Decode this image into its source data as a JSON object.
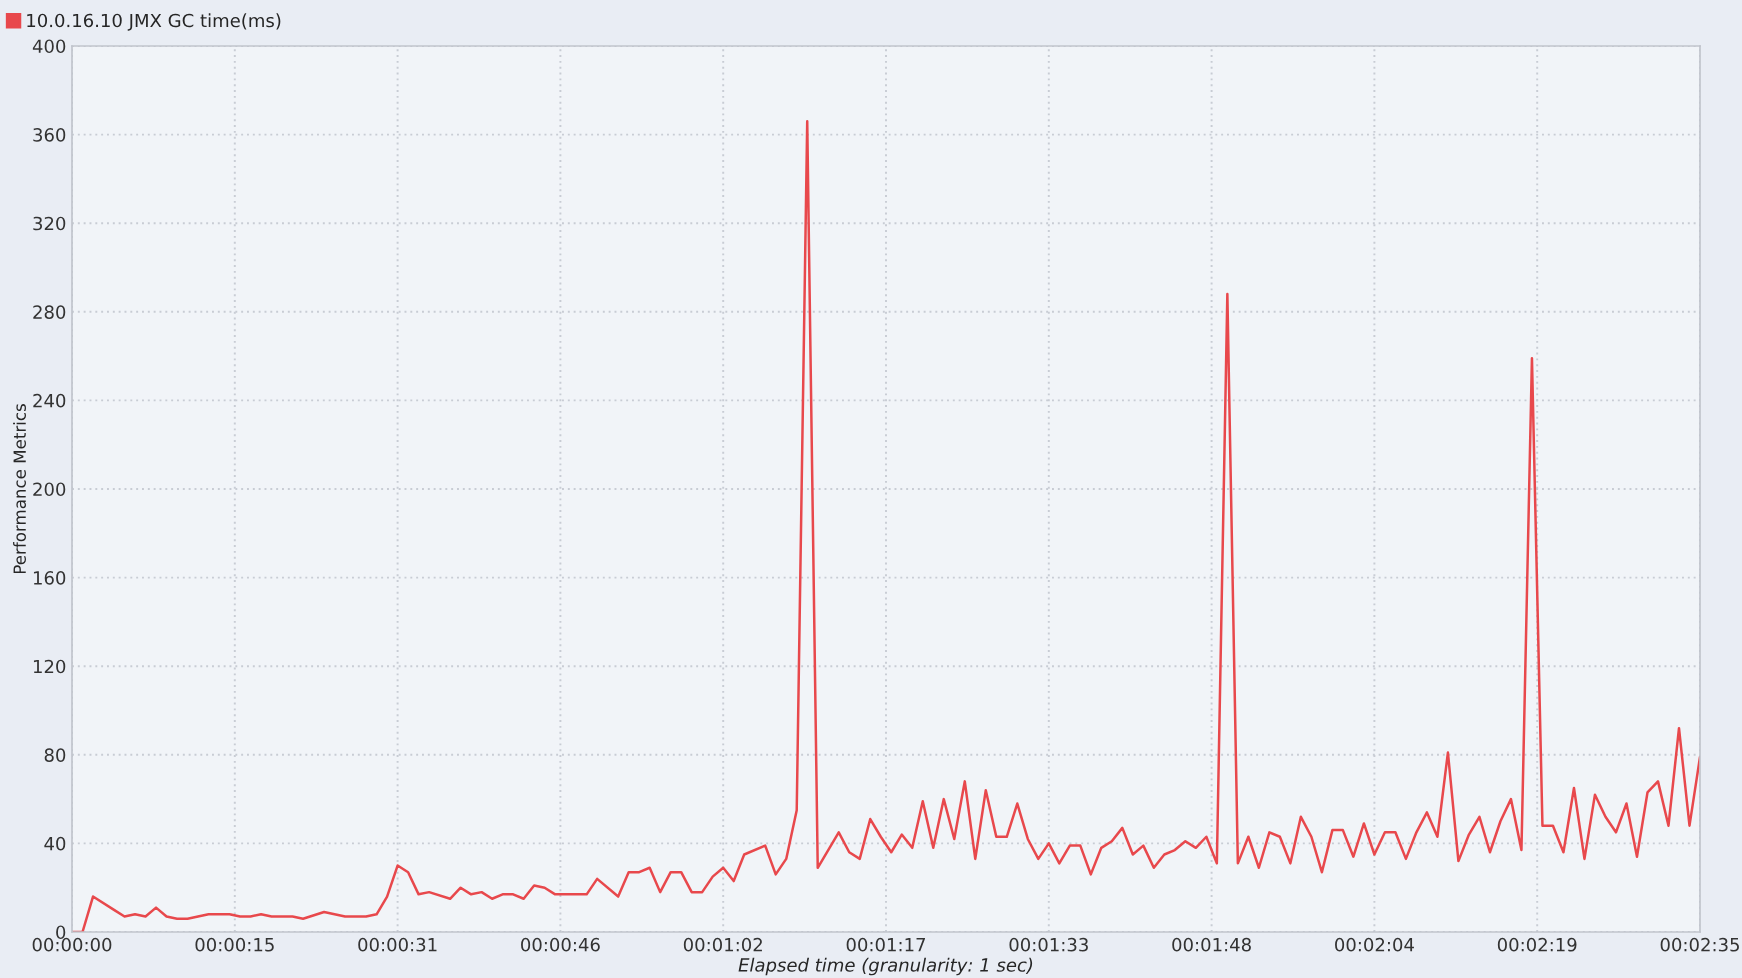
{
  "chart_data": {
    "type": "line",
    "xlabel": "Elapsed time (granularity: 1 sec)",
    "ylabel": "Performance Metrics",
    "x": [
      0,
      1,
      2,
      4,
      5,
      6,
      7,
      8,
      9,
      10,
      11,
      12,
      13,
      15,
      16,
      17,
      18,
      19,
      21,
      22,
      24,
      26,
      28,
      29,
      30,
      31,
      32,
      33,
      34,
      36,
      37,
      38,
      39,
      40,
      41,
      42,
      43,
      44,
      45,
      46,
      49,
      50,
      52,
      53,
      54,
      55,
      56,
      57,
      58,
      59,
      60,
      61,
      62,
      63,
      64,
      66,
      67,
      68,
      69,
      70,
      71,
      73,
      74,
      75,
      76,
      77,
      78,
      79,
      80,
      81,
      82,
      83,
      84,
      85,
      86,
      87,
      88,
      89,
      90,
      91,
      92,
      93,
      94,
      95,
      96,
      97,
      98,
      99,
      100,
      101,
      102,
      103,
      104,
      105,
      106,
      107,
      108,
      109,
      110,
      111,
      112,
      113,
      114,
      115,
      116,
      117,
      118,
      119,
      120,
      121,
      122,
      123,
      124,
      125,
      126,
      127,
      128,
      129,
      130,
      131,
      132,
      133,
      134,
      135,
      136,
      137,
      138,
      139,
      140,
      141,
      142,
      143,
      144,
      145,
      146,
      147,
      148,
      149,
      150,
      151,
      152,
      153,
      154,
      155
    ],
    "series": [
      {
        "name": "10.0.16.10 JMX GC time(ms)",
        "color": "#e8484c",
        "values": [
          0,
          0,
          16,
          10,
          7,
          8,
          7,
          11,
          7,
          6,
          6,
          7,
          8,
          8,
          7,
          7,
          8,
          7,
          7,
          6,
          9,
          7,
          7,
          8,
          16,
          30,
          27,
          17,
          18,
          15,
          20,
          17,
          18,
          15,
          17,
          17,
          15,
          21,
          20,
          17,
          17,
          24,
          16,
          27,
          27,
          29,
          18,
          27,
          27,
          18,
          18,
          25,
          29,
          23,
          35,
          39,
          26,
          33,
          55,
          366,
          29,
          45,
          36,
          33,
          51,
          43,
          36,
          44,
          38,
          59,
          38,
          60,
          42,
          68,
          33,
          64,
          43,
          43,
          58,
          42,
          33,
          40,
          31,
          39,
          39,
          26,
          38,
          41,
          47,
          35,
          39,
          29,
          35,
          37,
          41,
          38,
          43,
          31,
          288,
          31,
          43,
          29,
          45,
          43,
          31,
          52,
          43,
          27,
          46,
          46,
          34,
          49,
          35,
          45,
          45,
          33,
          45,
          54,
          43,
          81,
          32,
          44,
          52,
          36,
          50,
          60,
          37,
          259,
          48,
          48,
          36,
          65,
          33,
          62,
          52,
          45,
          58,
          34,
          63,
          68,
          48,
          92,
          48,
          79
        ]
      }
    ],
    "xlim": [
      0,
      155
    ],
    "xticks": [
      {
        "value": 0,
        "label": "00:00:00"
      },
      {
        "value": 15.5,
        "label": "00:00:15"
      },
      {
        "value": 31,
        "label": "00:00:31"
      },
      {
        "value": 46.5,
        "label": "00:00:46"
      },
      {
        "value": 62,
        "label": "00:01:02"
      },
      {
        "value": 77.5,
        "label": "00:01:17"
      },
      {
        "value": 93,
        "label": "00:01:33"
      },
      {
        "value": 108.5,
        "label": "00:01:48"
      },
      {
        "value": 124,
        "label": "00:02:04"
      },
      {
        "value": 139.5,
        "label": "00:02:19"
      },
      {
        "value": 155,
        "label": "00:02:35"
      }
    ],
    "ylim": [
      0,
      400
    ],
    "yticks": [
      0,
      40,
      80,
      120,
      160,
      200,
      240,
      280,
      320,
      360,
      400
    ],
    "grid": true,
    "legend": "top left",
    "marker": "none",
    "line_style": "solid"
  }
}
